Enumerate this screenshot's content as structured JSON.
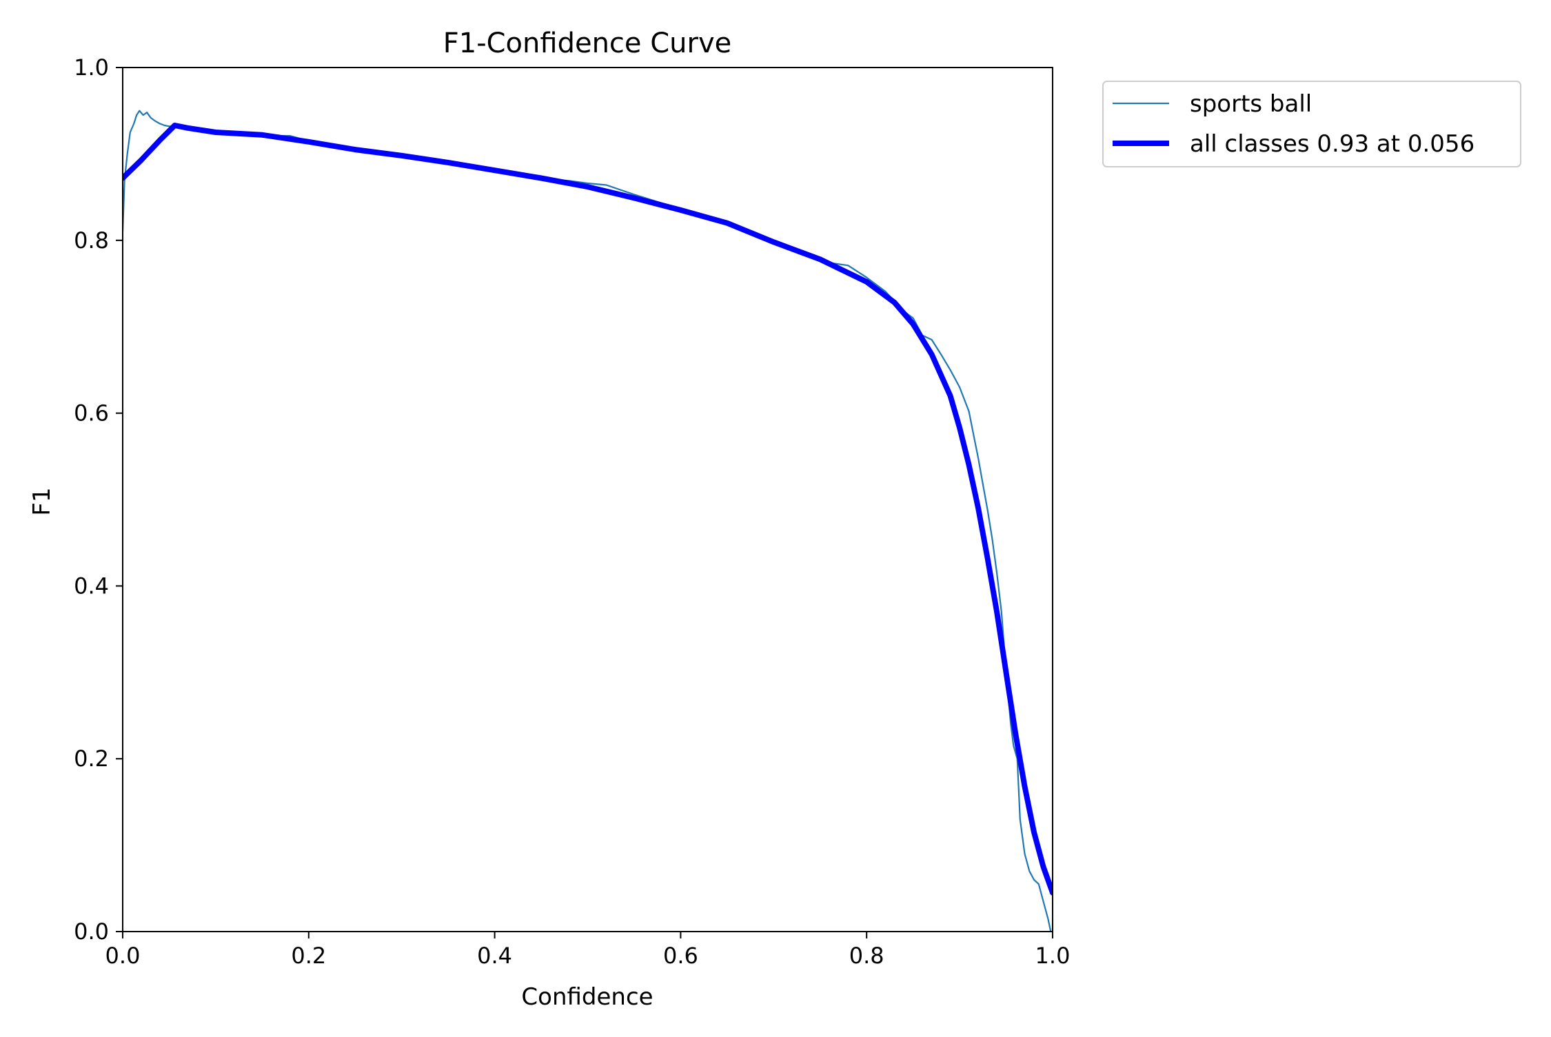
{
  "chart_data": {
    "type": "line",
    "title": "F1-Confidence Curve",
    "xlabel": "Confidence",
    "ylabel": "F1",
    "xlim": [
      0.0,
      1.0
    ],
    "ylim": [
      0.0,
      1.0
    ],
    "xticks": [
      "0.0",
      "0.2",
      "0.4",
      "0.6",
      "0.8",
      "1.0"
    ],
    "yticks": [
      "0.0",
      "0.2",
      "0.4",
      "0.6",
      "0.8",
      "1.0"
    ],
    "grid": false,
    "legend_position": "outside top-right",
    "series": [
      {
        "name": "sports ball",
        "color": "#1f77b4",
        "points": [
          [
            0.0,
            0.81
          ],
          [
            0.002,
            0.87
          ],
          [
            0.005,
            0.9
          ],
          [
            0.008,
            0.925
          ],
          [
            0.012,
            0.935
          ],
          [
            0.015,
            0.945
          ],
          [
            0.018,
            0.95
          ],
          [
            0.022,
            0.945
          ],
          [
            0.026,
            0.948
          ],
          [
            0.03,
            0.942
          ],
          [
            0.035,
            0.938
          ],
          [
            0.04,
            0.935
          ],
          [
            0.045,
            0.933
          ],
          [
            0.05,
            0.932
          ],
          [
            0.056,
            0.932
          ],
          [
            0.07,
            0.93
          ],
          [
            0.1,
            0.925
          ],
          [
            0.13,
            0.923
          ],
          [
            0.16,
            0.921
          ],
          [
            0.18,
            0.921
          ],
          [
            0.2,
            0.915
          ],
          [
            0.23,
            0.908
          ],
          [
            0.26,
            0.903
          ],
          [
            0.3,
            0.899
          ],
          [
            0.33,
            0.894
          ],
          [
            0.36,
            0.887
          ],
          [
            0.4,
            0.881
          ],
          [
            0.43,
            0.876
          ],
          [
            0.46,
            0.871
          ],
          [
            0.48,
            0.869
          ],
          [
            0.5,
            0.866
          ],
          [
            0.52,
            0.864
          ],
          [
            0.55,
            0.853
          ],
          [
            0.58,
            0.843
          ],
          [
            0.6,
            0.836
          ],
          [
            0.62,
            0.829
          ],
          [
            0.65,
            0.821
          ],
          [
            0.68,
            0.806
          ],
          [
            0.7,
            0.797
          ],
          [
            0.73,
            0.787
          ],
          [
            0.76,
            0.774
          ],
          [
            0.78,
            0.771
          ],
          [
            0.8,
            0.757
          ],
          [
            0.82,
            0.741
          ],
          [
            0.84,
            0.718
          ],
          [
            0.85,
            0.71
          ],
          [
            0.86,
            0.69
          ],
          [
            0.87,
            0.685
          ],
          [
            0.88,
            0.668
          ],
          [
            0.89,
            0.65
          ],
          [
            0.9,
            0.63
          ],
          [
            0.91,
            0.602
          ],
          [
            0.915,
            0.575
          ],
          [
            0.92,
            0.548
          ],
          [
            0.925,
            0.518
          ],
          [
            0.93,
            0.488
          ],
          [
            0.935,
            0.455
          ],
          [
            0.94,
            0.415
          ],
          [
            0.945,
            0.37
          ],
          [
            0.95,
            0.3
          ],
          [
            0.955,
            0.24
          ],
          [
            0.958,
            0.215
          ],
          [
            0.962,
            0.2
          ],
          [
            0.965,
            0.13
          ],
          [
            0.97,
            0.09
          ],
          [
            0.975,
            0.07
          ],
          [
            0.98,
            0.06
          ],
          [
            0.985,
            0.055
          ],
          [
            0.99,
            0.035
          ],
          [
            0.995,
            0.015
          ],
          [
            0.998,
            0.0
          ]
        ]
      },
      {
        "name": "all classes 0.93 at 0.056",
        "color": "#0000ff",
        "points": [
          [
            0.0,
            0.872
          ],
          [
            0.02,
            0.893
          ],
          [
            0.04,
            0.916
          ],
          [
            0.056,
            0.933
          ],
          [
            0.07,
            0.93
          ],
          [
            0.1,
            0.925
          ],
          [
            0.15,
            0.922
          ],
          [
            0.2,
            0.914
          ],
          [
            0.25,
            0.905
          ],
          [
            0.3,
            0.898
          ],
          [
            0.35,
            0.89
          ],
          [
            0.4,
            0.881
          ],
          [
            0.45,
            0.872
          ],
          [
            0.5,
            0.862
          ],
          [
            0.55,
            0.849
          ],
          [
            0.6,
            0.835
          ],
          [
            0.65,
            0.82
          ],
          [
            0.7,
            0.798
          ],
          [
            0.75,
            0.778
          ],
          [
            0.8,
            0.752
          ],
          [
            0.83,
            0.728
          ],
          [
            0.85,
            0.703
          ],
          [
            0.87,
            0.668
          ],
          [
            0.89,
            0.62
          ],
          [
            0.9,
            0.583
          ],
          [
            0.91,
            0.54
          ],
          [
            0.92,
            0.49
          ],
          [
            0.93,
            0.432
          ],
          [
            0.94,
            0.37
          ],
          [
            0.95,
            0.3
          ],
          [
            0.96,
            0.23
          ],
          [
            0.97,
            0.168
          ],
          [
            0.98,
            0.115
          ],
          [
            0.99,
            0.075
          ],
          [
            1.0,
            0.045
          ]
        ]
      }
    ]
  }
}
